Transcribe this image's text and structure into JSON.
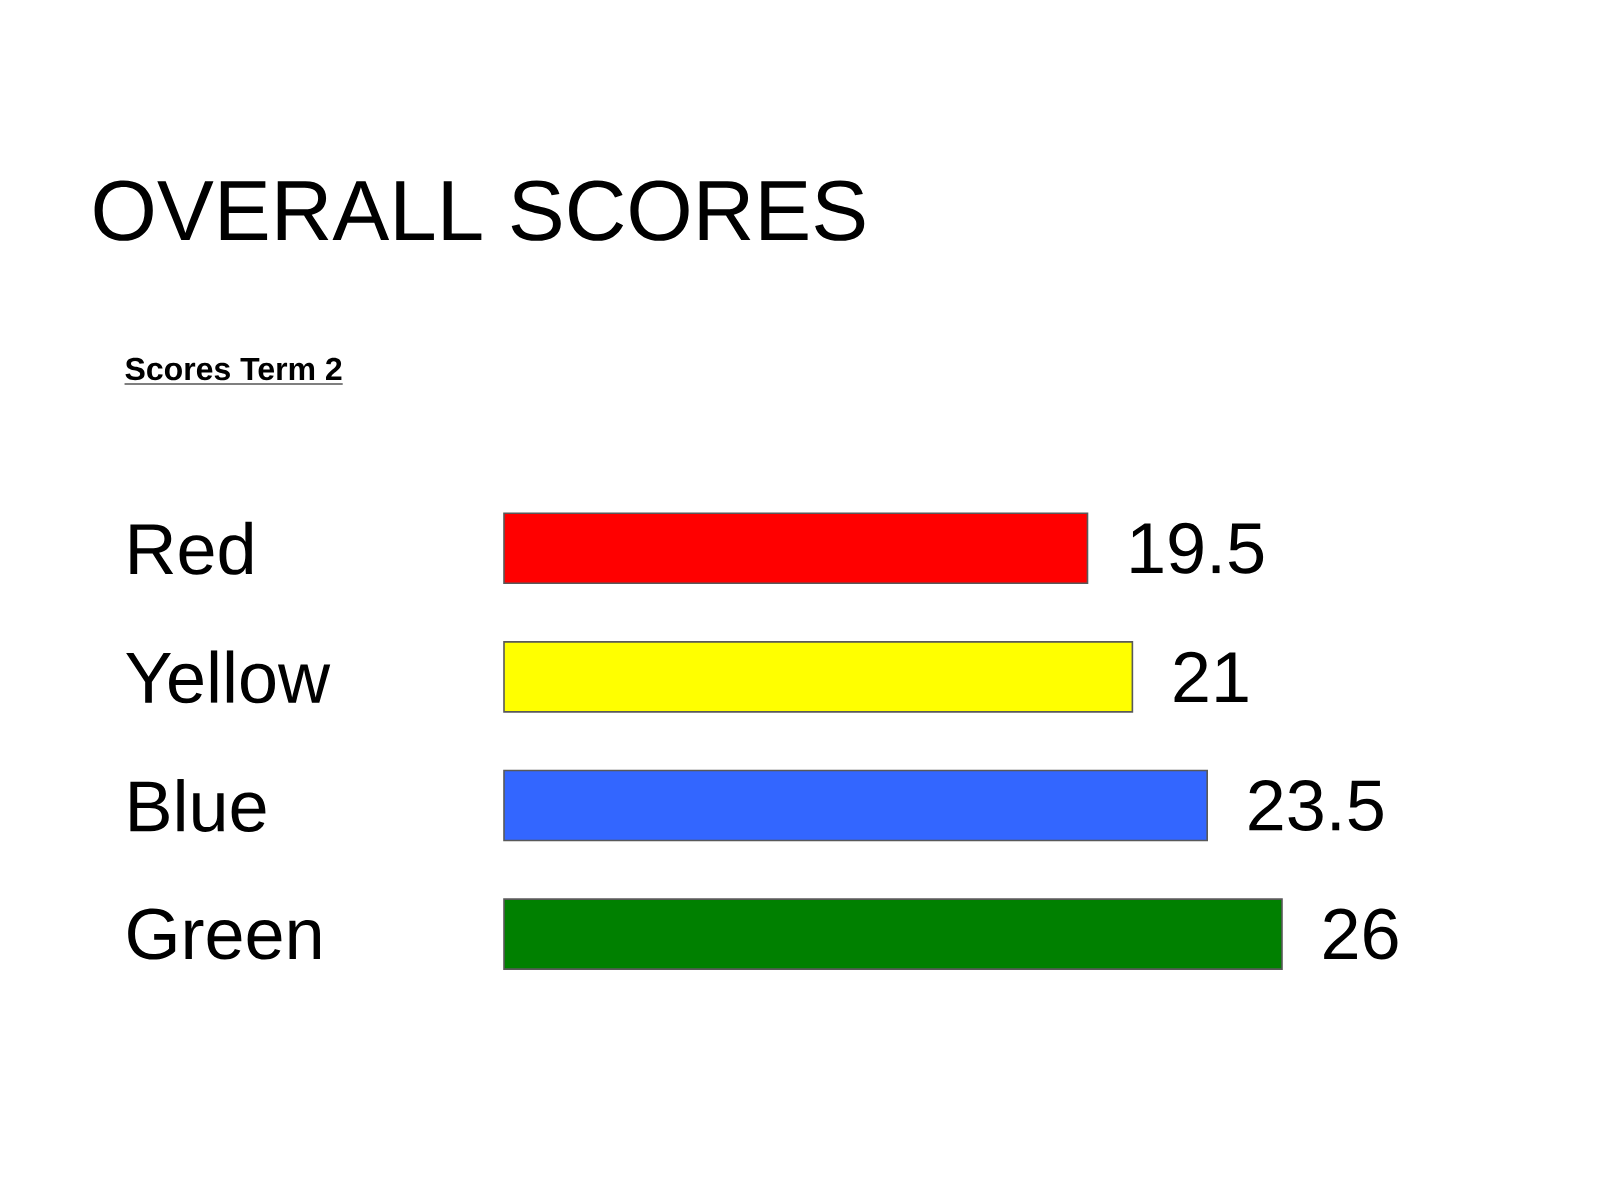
{
  "chart_data": {
    "type": "bar",
    "orientation": "horizontal",
    "title": "OVERALL SCORES",
    "subtitle": "Scores Term 2",
    "categories": [
      "Red",
      "Yellow",
      "Blue",
      "Green"
    ],
    "values": [
      19.5,
      21,
      23.5,
      26
    ],
    "colors": [
      "#ff0000",
      "#ffff00",
      "#3366ff",
      "#008000"
    ],
    "data_labels": true
  }
}
